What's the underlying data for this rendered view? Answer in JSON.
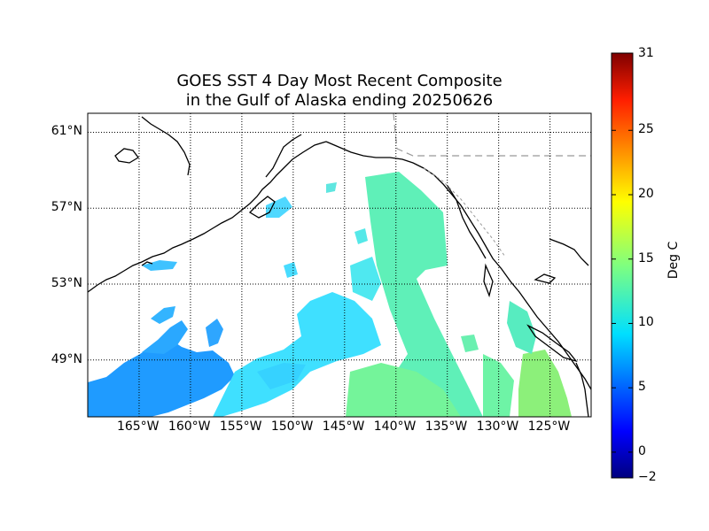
{
  "title": {
    "line1": "GOES SST 4 Day Most Recent Composite",
    "line2": "in the Gulf of Alaska ending 20250626"
  },
  "map": {
    "lon_range": [
      -170,
      -121
    ],
    "lat_range": [
      46,
      62
    ],
    "lat_ticks": [
      {
        "value": 61,
        "label": "61°N"
      },
      {
        "value": 57,
        "label": "57°N"
      },
      {
        "value": 53,
        "label": "53°N"
      },
      {
        "value": 49,
        "label": "49°N"
      }
    ],
    "lon_ticks": [
      {
        "value": -165,
        "label": "165°W"
      },
      {
        "value": -160,
        "label": "160°W"
      },
      {
        "value": -155,
        "label": "155°W"
      },
      {
        "value": -150,
        "label": "150°W"
      },
      {
        "value": -145,
        "label": "145°W"
      },
      {
        "value": -140,
        "label": "140°W"
      },
      {
        "value": -135,
        "label": "135°W"
      },
      {
        "value": -130,
        "label": "130°W"
      },
      {
        "value": -125,
        "label": "125°W"
      }
    ],
    "grid": "dotted",
    "border_style": "dashed"
  },
  "colorbar": {
    "label": "Deg C",
    "vmin": -2,
    "vmax": 31,
    "ticks": [
      {
        "value": 31,
        "label": "31"
      },
      {
        "value": 25,
        "label": "25"
      },
      {
        "value": 20,
        "label": "20"
      },
      {
        "value": 15,
        "label": "15"
      },
      {
        "value": 10,
        "label": "10"
      },
      {
        "value": 5,
        "label": "5"
      },
      {
        "value": 0,
        "label": "0"
      },
      {
        "value": -2,
        "label": "−2"
      }
    ],
    "colormap": "jet"
  }
}
